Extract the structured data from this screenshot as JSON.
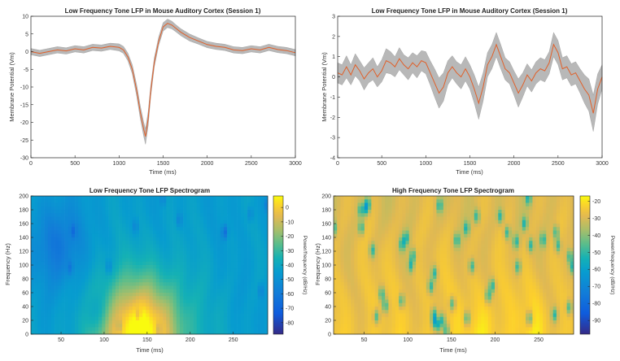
{
  "chart_data": [
    {
      "type": "line",
      "title": "Low Frequency Tone LFP in Mouse Auditory Cortex (Session 1)",
      "xlabel": "Time (ms)",
      "ylabel": "Membrane Potential (Vm)",
      "xlim": [
        0,
        3000
      ],
      "ylim": [
        -30,
        10
      ],
      "xticks": [
        0,
        500,
        1000,
        1500,
        2000,
        2500,
        3000
      ],
      "yticks": [
        10,
        5,
        0,
        -5,
        -10,
        -15,
        -20,
        -25,
        -30
      ],
      "grid": false,
      "line_color": "#e0602a",
      "band_color": "#b8b8b8",
      "x": [
        0,
        100,
        200,
        300,
        400,
        500,
        600,
        700,
        800,
        900,
        1000,
        1050,
        1100,
        1150,
        1200,
        1240,
        1280,
        1300,
        1330,
        1360,
        1400,
        1450,
        1500,
        1550,
        1600,
        1650,
        1700,
        1800,
        1900,
        2000,
        2100,
        2200,
        2300,
        2400,
        2500,
        2600,
        2700,
        2800,
        2900,
        3000
      ],
      "y": [
        0,
        -0.5,
        0,
        0.5,
        0.2,
        0.8,
        0.5,
        1.2,
        1.0,
        1.5,
        1.2,
        0.5,
        -1.5,
        -5,
        -11,
        -17,
        -22,
        -24,
        -19,
        -11,
        -3,
        3,
        7,
        8,
        7.5,
        6.5,
        5.5,
        4,
        3,
        2,
        1.5,
        1.2,
        0.5,
        0.3,
        0.8,
        0.5,
        1.2,
        0.6,
        0.3,
        -0.3
      ],
      "band": [
        0.9,
        0.9,
        0.9,
        0.9,
        0.9,
        0.9,
        0.9,
        0.9,
        0.9,
        0.9,
        1,
        1,
        1.1,
        1.3,
        1.6,
        1.8,
        2,
        2.2,
        2,
        1.6,
        1.3,
        1.2,
        1.2,
        1.2,
        1.1,
        1,
        1,
        1,
        0.9,
        0.9,
        0.9,
        0.9,
        0.9,
        0.9,
        0.9,
        0.9,
        0.9,
        0.9,
        0.9,
        0.9
      ]
    },
    {
      "type": "line",
      "title": "Low Frequency Tone LFP in Mouse Auditory Cortex (Session 1)",
      "xlabel": "Time (ms)",
      "ylabel": "Membrane Potential (Vm)",
      "xlim": [
        0,
        3000
      ],
      "ylim": [
        -4,
        3
      ],
      "xticks": [
        0,
        500,
        1000,
        1500,
        2000,
        2500,
        3000
      ],
      "yticks": [
        3,
        2,
        1,
        0,
        -1,
        -2,
        -3,
        -4
      ],
      "grid": false,
      "line_color": "#e0602a",
      "band_color": "#b8b8b8",
      "x": [
        0,
        50,
        100,
        150,
        200,
        250,
        300,
        350,
        400,
        450,
        500,
        550,
        600,
        650,
        700,
        750,
        800,
        850,
        900,
        950,
        1000,
        1050,
        1100,
        1150,
        1200,
        1250,
        1300,
        1350,
        1400,
        1450,
        1500,
        1550,
        1600,
        1650,
        1700,
        1750,
        1800,
        1850,
        1900,
        1950,
        2000,
        2050,
        2100,
        2150,
        2200,
        2250,
        2300,
        2350,
        2400,
        2450,
        2500,
        2550,
        2600,
        2650,
        2700,
        2750,
        2800,
        2850,
        2900,
        2950,
        3000
      ],
      "y": [
        0.2,
        0.1,
        0.5,
        0.1,
        0.6,
        0.3,
        -0.1,
        0.2,
        0.4,
        0.0,
        0.3,
        0.8,
        0.7,
        0.5,
        0.9,
        0.6,
        0.4,
        0.7,
        0.5,
        0.8,
        0.7,
        0.2,
        -0.3,
        -0.8,
        -0.5,
        0.2,
        0.5,
        0.2,
        0.0,
        0.4,
        0.0,
        -0.6,
        -1.3,
        -0.5,
        0.6,
        1.0,
        1.6,
        1.0,
        0.4,
        0.2,
        -0.3,
        -0.8,
        -0.4,
        0.1,
        -0.2,
        0.2,
        0.4,
        0.3,
        0.7,
        1.6,
        1.2,
        0.4,
        0.5,
        0.1,
        0.2,
        -0.2,
        -0.6,
        -0.9,
        -1.8,
        -0.6,
        0.0
      ],
      "band": [
        0.5,
        0.5,
        0.55,
        0.5,
        0.55,
        0.5,
        0.55,
        0.5,
        0.55,
        0.5,
        0.55,
        0.6,
        0.55,
        0.5,
        0.55,
        0.5,
        0.55,
        0.5,
        0.55,
        0.5,
        0.55,
        0.6,
        0.7,
        0.75,
        0.7,
        0.6,
        0.55,
        0.55,
        0.6,
        0.6,
        0.6,
        0.7,
        0.8,
        0.7,
        0.6,
        0.6,
        0.6,
        0.6,
        0.55,
        0.55,
        0.6,
        0.7,
        0.6,
        0.55,
        0.55,
        0.55,
        0.55,
        0.55,
        0.55,
        0.6,
        0.6,
        0.55,
        0.55,
        0.55,
        0.55,
        0.6,
        0.7,
        0.8,
        0.9,
        0.75,
        0.6
      ]
    },
    {
      "type": "heatmap",
      "title": "Low Frequency Tone LFP Spectrogram",
      "xlabel": "Time (ms)",
      "ylabel": "Frequency (Hz)",
      "xlim": [
        15,
        290
      ],
      "ylim": [
        0,
        200
      ],
      "xticks": [
        50,
        100,
        150,
        200,
        250
      ],
      "yticks": [
        200,
        180,
        160,
        140,
        120,
        100,
        80,
        60,
        40,
        20,
        0
      ],
      "colorbar": {
        "label": "Power/frequency (dB/Hz)",
        "range": [
          -88,
          8
        ],
        "ticks": [
          0,
          -10,
          -20,
          -30,
          -40,
          -50,
          -60,
          -70,
          -80
        ],
        "colormap": "parula"
      },
      "description_of_field": "High power (yellow) concentrated below ~80 Hz between ~120 and ~220 ms; blue/teal at higher frequencies and early times."
    },
    {
      "type": "heatmap",
      "title": "High Frequency Tone LFP Spectrogram",
      "xlabel": "Time (ms)",
      "ylabel": "Frequency (Hz)",
      "xlim": [
        15,
        290
      ],
      "ylim": [
        0,
        200
      ],
      "xticks": [
        50,
        100,
        150,
        200,
        250
      ],
      "yticks": [
        200,
        180,
        160,
        140,
        120,
        100,
        80,
        60,
        40,
        20,
        0
      ],
      "colorbar": {
        "label": "Power/frequency (dB/Hz)",
        "range": [
          -98,
          -17
        ],
        "ticks": [
          -20,
          -30,
          -40,
          -50,
          -60,
          -70,
          -80,
          -90
        ],
        "colormap": "parula"
      },
      "description_of_field": "Predominantly orange/yellow with vertical streaks; teal blobs scattered throughout, brighter below 100 Hz."
    }
  ]
}
